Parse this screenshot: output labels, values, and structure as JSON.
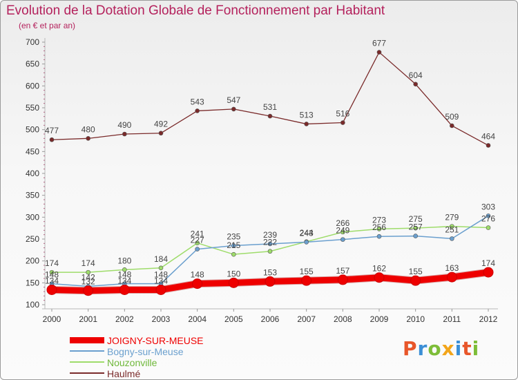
{
  "title": "Evolution de la Dotation Globale de Fonctionnement par Habitant",
  "subtitle": "(en € et par an)",
  "logo": {
    "text": "Proxiti",
    "colors": [
      "#e8562a",
      "#3b8fd6",
      "#7dbd38",
      "#f2a51a",
      "#3b8fd6",
      "#e8562a",
      "#7dbd38"
    ]
  },
  "colors": {
    "title": "#b4215c",
    "axis": "#b8b8b8",
    "tick_label": "#333333",
    "data_label": "#444444"
  },
  "chart_data": {
    "type": "line",
    "title": "Evolution de la Dotation Globale de Fonctionnement par Habitant",
    "subtitle": "(en € et par an)",
    "xlabel": "",
    "ylabel": "",
    "ylim": [
      100,
      700
    ],
    "y_ticks": [
      100,
      150,
      200,
      250,
      300,
      350,
      400,
      450,
      500,
      550,
      600,
      650,
      700
    ],
    "grid": false,
    "legend_position": "bottom-left",
    "categories": [
      "2000",
      "2001",
      "2002",
      "2003",
      "2004",
      "2005",
      "2006",
      "2007",
      "2008",
      "2009",
      "2010",
      "2011",
      "2012"
    ],
    "series": [
      {
        "name": "JOIGNY-SUR-MEUSE",
        "color": "#ee0000",
        "width": 9,
        "marker": 7,
        "values": [
          134,
          132,
          134,
          134,
          148,
          150,
          153,
          155,
          157,
          162,
          155,
          163,
          174
        ],
        "labels": [
          "134",
          "132",
          "134",
          "134",
          "148",
          "150",
          "153",
          "155",
          "157",
          "162",
          "155",
          "163",
          "174"
        ]
      },
      {
        "name": "Bogny-sur-Meuse",
        "color": "#6a9fce",
        "width": 1.5,
        "marker": 3,
        "values": [
          148,
          142,
          148,
          148,
          227,
          235,
          239,
          243,
          249,
          256,
          257,
          251,
          303
        ],
        "labels": [
          "148",
          "142",
          "148",
          "148",
          "227",
          "235",
          "239",
          "243",
          "249",
          "256",
          "257",
          "251",
          "303"
        ]
      },
      {
        "name": "Nouzonville",
        "color": "#9edc6a",
        "width": 1.5,
        "marker": 3,
        "values": [
          174,
          174,
          180,
          184,
          241,
          215,
          222,
          244,
          266,
          273,
          275,
          279,
          276
        ],
        "labels": [
          "174",
          "174",
          "180",
          "184",
          "241",
          "215",
          "222",
          "244",
          "266",
          "273",
          "275",
          "279",
          "276"
        ]
      },
      {
        "name": "Haulmé",
        "color": "#7a2a2a",
        "width": 1.3,
        "marker": 3,
        "values": [
          477,
          480,
          490,
          492,
          543,
          547,
          531,
          513,
          516,
          677,
          604,
          509,
          464
        ],
        "labels": [
          "477",
          "480",
          "490",
          "492",
          "543",
          "547",
          "531",
          "513",
          "516",
          "677",
          "604",
          "509",
          "464"
        ]
      }
    ]
  }
}
